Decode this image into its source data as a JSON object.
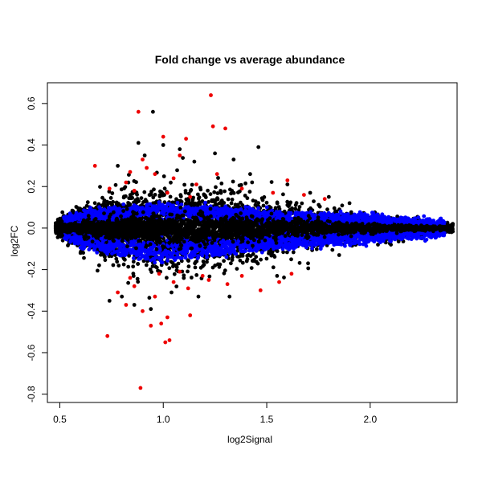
{
  "chart_data": {
    "type": "scatter",
    "title": "Fold change vs average abundance",
    "xlabel": "log2Signal",
    "ylabel": "log2FC",
    "xlim": [
      0.44,
      2.42
    ],
    "ylim": [
      -0.84,
      0.7
    ],
    "xticks": [
      0.5,
      1.0,
      1.5,
      2.0
    ],
    "xtick_labels": [
      "0.5",
      "1.0",
      "1.5",
      "2.0"
    ],
    "yticks": [
      -0.8,
      -0.6,
      -0.4,
      -0.2,
      0.0,
      0.2,
      0.4,
      0.6
    ],
    "ytick_labels": [
      "-0.8",
      "-0.6",
      "-0.4",
      "-0.2",
      "0.0",
      "0.2",
      "0.4",
      "0.6"
    ],
    "grid": false,
    "legend": "none",
    "colors": {
      "black": "#000000",
      "blue": "#0000ff",
      "red": "#ee0000"
    },
    "series": [
      {
        "color": "black",
        "points": [
          [
            0.95,
            0.56
          ],
          [
            0.88,
            0.41
          ],
          [
            0.91,
            0.35
          ],
          [
            1.0,
            0.4
          ],
          [
            1.08,
            0.38
          ],
          [
            1.25,
            0.36
          ],
          [
            1.34,
            0.33
          ],
          [
            1.46,
            0.39
          ],
          [
            0.78,
            0.3
          ],
          [
            1.15,
            0.32
          ],
          [
            1.42,
            0.26
          ],
          [
            1.6,
            0.21
          ],
          [
            1.71,
            0.17
          ],
          [
            1.8,
            0.15
          ],
          [
            1.9,
            0.12
          ],
          [
            0.74,
            -0.35
          ],
          [
            0.8,
            -0.33
          ],
          [
            0.86,
            -0.37
          ],
          [
            0.94,
            -0.39
          ],
          [
            1.04,
            -0.31
          ],
          [
            1.17,
            -0.33
          ],
          [
            1.32,
            -0.33
          ],
          [
            1.55,
            -0.23
          ],
          [
            1.7,
            -0.17
          ],
          [
            1.85,
            -0.13
          ],
          [
            2.1,
            -0.08
          ],
          [
            2.25,
            -0.05
          ],
          [
            2.32,
            0.02
          ],
          [
            2.38,
            0.0
          ],
          [
            0.6,
            -0.12
          ]
        ],
        "envelope": {
          "xrange": [
            0.48,
            2.4
          ],
          "core_center": 0.0,
          "halfwidth": [
            [
              0.48,
              0.03
            ],
            [
              0.6,
              0.1
            ],
            [
              0.8,
              0.18
            ],
            [
              1.0,
              0.2
            ],
            [
              1.2,
              0.2
            ],
            [
              1.5,
              0.14
            ],
            [
              1.8,
              0.09
            ],
            [
              2.1,
              0.05
            ],
            [
              2.4,
              0.02
            ]
          ]
        }
      },
      {
        "color": "blue",
        "band": {
          "xrange": [
            0.52,
            2.36
          ],
          "upper": [
            [
              0.52,
              0.05
            ],
            [
              0.7,
              0.09
            ],
            [
              1.0,
              0.11
            ],
            [
              1.3,
              0.09
            ],
            [
              1.6,
              0.07
            ],
            [
              1.9,
              0.06
            ],
            [
              2.2,
              0.04
            ],
            [
              2.36,
              0.03
            ]
          ],
          "lower": [
            [
              0.52,
              -0.05
            ],
            [
              0.7,
              -0.11
            ],
            [
              1.0,
              -0.16
            ],
            [
              1.3,
              -0.12
            ],
            [
              1.6,
              -0.09
            ],
            [
              1.9,
              -0.07
            ],
            [
              2.2,
              -0.04
            ],
            [
              2.36,
              -0.03
            ]
          ]
        }
      },
      {
        "color": "red",
        "points": [
          [
            0.88,
            0.56
          ],
          [
            1.23,
            0.64
          ],
          [
            1.3,
            0.48
          ],
          [
            1.24,
            0.49
          ],
          [
            1.0,
            0.44
          ],
          [
            1.11,
            0.43
          ],
          [
            1.08,
            0.35
          ],
          [
            0.9,
            0.33
          ],
          [
            0.92,
            0.29
          ],
          [
            0.84,
            0.27
          ],
          [
            0.67,
            0.3
          ],
          [
            0.82,
            0.22
          ],
          [
            0.96,
            0.26
          ],
          [
            1.05,
            0.24
          ],
          [
            1.16,
            0.21
          ],
          [
            1.26,
            0.26
          ],
          [
            1.38,
            0.19
          ],
          [
            1.53,
            0.17
          ],
          [
            1.6,
            0.23
          ],
          [
            1.68,
            0.16
          ],
          [
            1.78,
            0.14
          ],
          [
            0.74,
            0.19
          ],
          [
            0.86,
            0.18
          ],
          [
            1.02,
            0.17
          ],
          [
            1.13,
            0.15
          ],
          [
            0.73,
            -0.52
          ],
          [
            0.89,
            -0.77
          ],
          [
            1.01,
            -0.55
          ],
          [
            1.03,
            -0.54
          ],
          [
            0.94,
            -0.47
          ],
          [
            0.99,
            -0.46
          ],
          [
            1.02,
            -0.43
          ],
          [
            1.13,
            -0.42
          ],
          [
            0.82,
            -0.37
          ],
          [
            0.9,
            -0.4
          ],
          [
            0.78,
            -0.31
          ],
          [
            0.86,
            -0.28
          ],
          [
            0.96,
            -0.33
          ],
          [
            1.05,
            -0.26
          ],
          [
            1.12,
            -0.29
          ],
          [
            1.22,
            -0.25
          ],
          [
            1.31,
            -0.27
          ],
          [
            1.38,
            -0.23
          ],
          [
            1.47,
            -0.3
          ],
          [
            1.56,
            -0.26
          ],
          [
            1.62,
            -0.22
          ],
          [
            0.84,
            -0.24
          ],
          [
            0.98,
            -0.22
          ],
          [
            1.08,
            -0.21
          ],
          [
            1.19,
            -0.23
          ]
        ]
      }
    ]
  }
}
